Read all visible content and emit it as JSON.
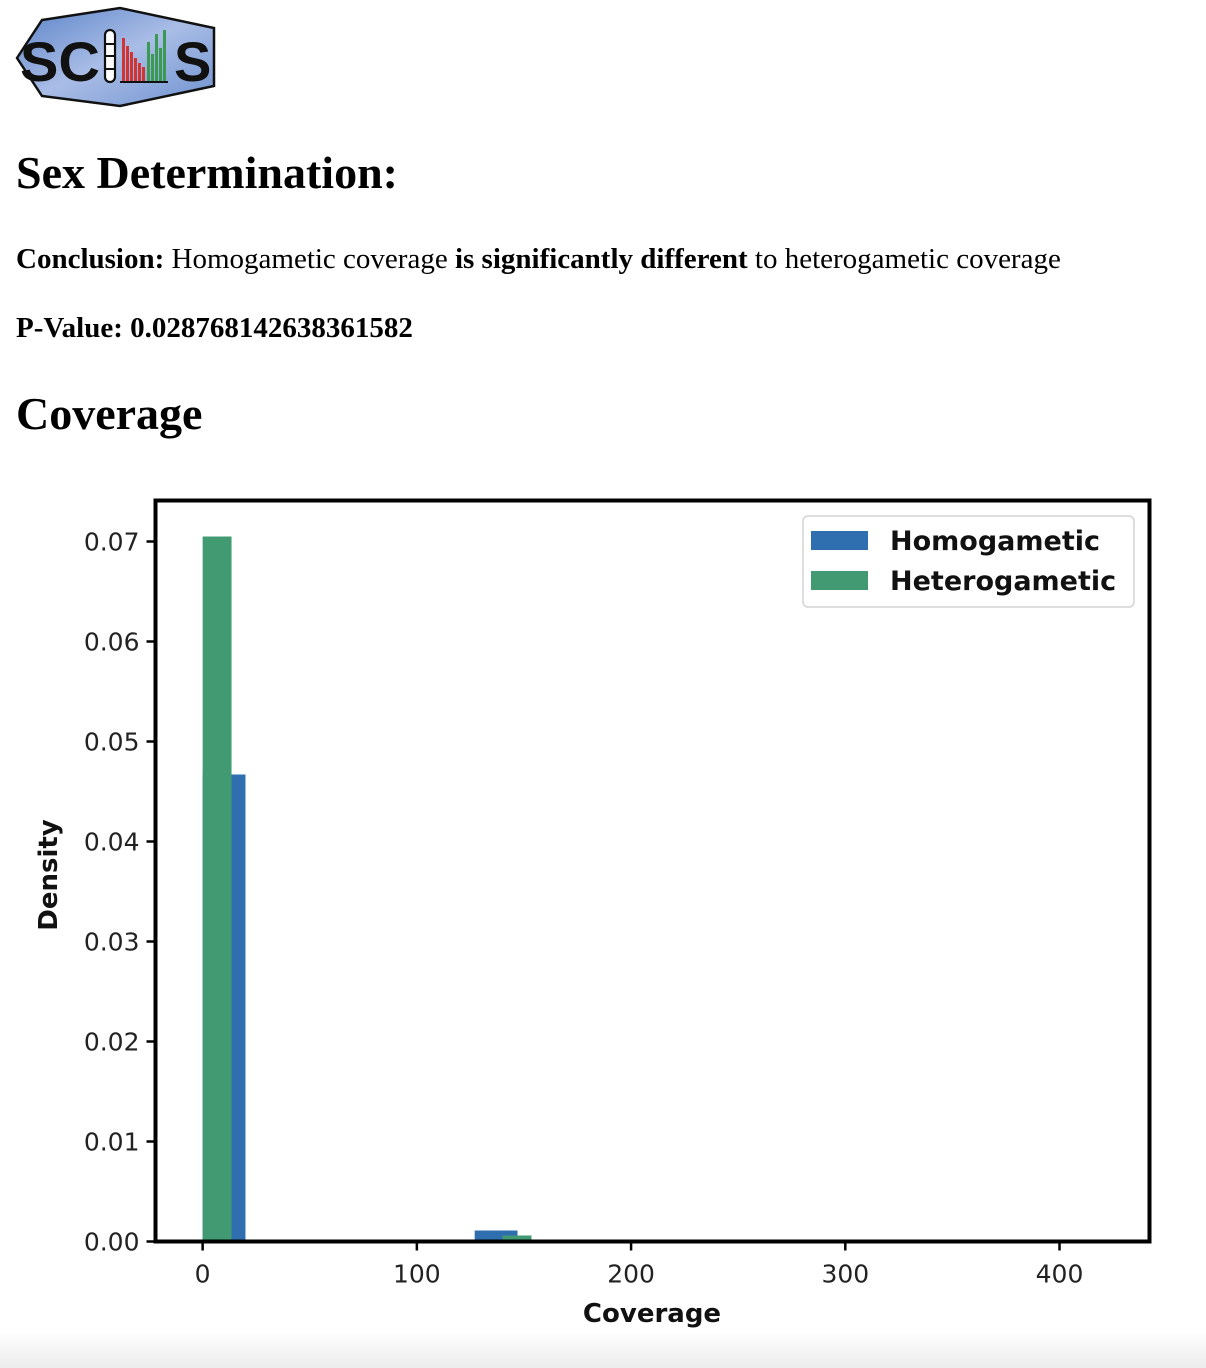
{
  "logo": {
    "letters_left": "SC",
    "letters_right": "S"
  },
  "sex_determination": {
    "heading": "Sex Determination:",
    "conclusion_label": "Conclusion:",
    "conclusion_part1": "Homogametic coverage",
    "conclusion_emph": "is significantly different",
    "conclusion_part2": "to heterogametic coverage",
    "pvalue_label": "P-Value:",
    "pvalue": "0.028768142638361582"
  },
  "coverage": {
    "heading": "Coverage"
  },
  "colors": {
    "homogametic": "#2f6fb0",
    "heterogametic": "#419a72"
  },
  "chart_data": {
    "type": "bar",
    "subtype": "histogram",
    "xlabel": "Coverage",
    "ylabel": "Density",
    "xlim": [
      -22,
      442
    ],
    "ylim": [
      0,
      0.0741
    ],
    "xticks": [
      0,
      100,
      200,
      300,
      400
    ],
    "xtick_labels": [
      "0",
      "100",
      "200",
      "300",
      "400"
    ],
    "yticks": [
      0,
      0.01,
      0.02,
      0.03,
      0.04,
      0.05,
      0.06,
      0.07
    ],
    "ytick_labels": [
      "0.00",
      "0.01",
      "0.02",
      "0.03",
      "0.04",
      "0.05",
      "0.06",
      "0.07"
    ],
    "legend": {
      "position": "top-right",
      "entries": [
        "Homogametic",
        "Heterogametic"
      ]
    },
    "grid": false,
    "series": [
      {
        "name": "Homogametic",
        "color": "#2f6fb0",
        "bins": [
          {
            "x0": 0,
            "x1": 20,
            "value": 0.0467
          },
          {
            "x0": 127,
            "x1": 147,
            "value": 0.0011
          }
        ]
      },
      {
        "name": "Heterogametic",
        "color": "#419a72",
        "bins": [
          {
            "x0": 0,
            "x1": 13.5,
            "value": 0.0705
          },
          {
            "x0": 140,
            "x1": 153.5,
            "value": 0.0006
          }
        ]
      }
    ]
  }
}
